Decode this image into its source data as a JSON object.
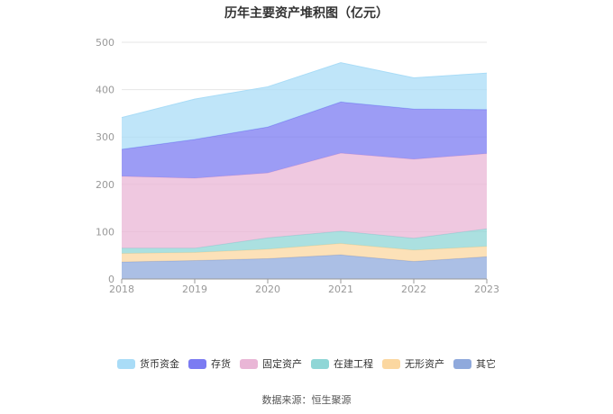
{
  "chart_data": {
    "type": "area",
    "stacked": true,
    "title": "历年主要资产堆积图（亿元）",
    "x": [
      "2018",
      "2019",
      "2020",
      "2021",
      "2022",
      "2023"
    ],
    "ylim": [
      0,
      500
    ],
    "yticks": [
      "0",
      "100",
      "200",
      "300",
      "400",
      "500"
    ],
    "grid": true,
    "legend_position": "bottom",
    "series": [
      {
        "name": "其它",
        "color": "#8fa9dc",
        "values": [
          36,
          39,
          43,
          51,
          37,
          47
        ]
      },
      {
        "name": "无形资产",
        "color": "#fbd7a0",
        "values": [
          18,
          17,
          20,
          24,
          24,
          22
        ]
      },
      {
        "name": "在建工程",
        "color": "#8fd6d6",
        "values": [
          11,
          9,
          24,
          26,
          25,
          37
        ]
      },
      {
        "name": "固定资产",
        "color": "#e9b6d6",
        "values": [
          152,
          148,
          137,
          165,
          167,
          159
        ]
      },
      {
        "name": "存货",
        "color": "#7b7bf2",
        "values": [
          57,
          82,
          97,
          108,
          106,
          93
        ]
      },
      {
        "name": "货币资金",
        "color": "#a9dcf7",
        "values": [
          67,
          85,
          85,
          83,
          66,
          77
        ]
      }
    ],
    "legend_order": [
      "货币资金",
      "存货",
      "固定资产",
      "在建工程",
      "无形资产",
      "其它"
    ]
  },
  "footer": {
    "source": "数据来源：恒生聚源"
  }
}
